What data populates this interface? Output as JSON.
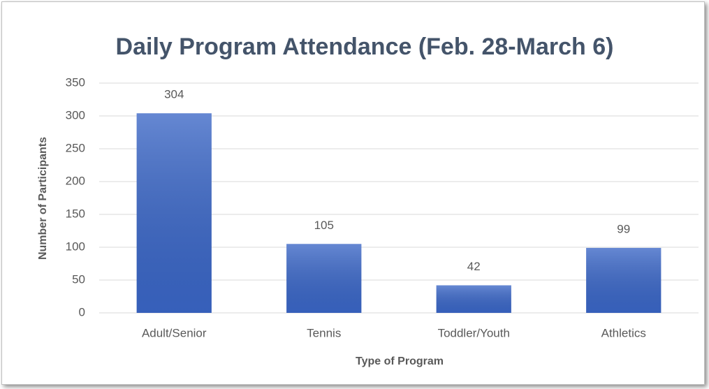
{
  "chart_data": {
    "type": "bar",
    "title": "Daily Program Attendance (Feb. 28-March 6)",
    "x_label": "Type of Program",
    "y_label": "Number of Participants",
    "categories": [
      "Adult/Senior",
      "Tennis",
      "Toddler/Youth",
      "Athletics"
    ],
    "values": [
      304,
      105,
      42,
      99
    ],
    "color": "#3a66c6",
    "ylim": [
      0,
      350
    ],
    "yticks": [
      0,
      50,
      100,
      150,
      200,
      250,
      300,
      350
    ],
    "grid": true
  }
}
